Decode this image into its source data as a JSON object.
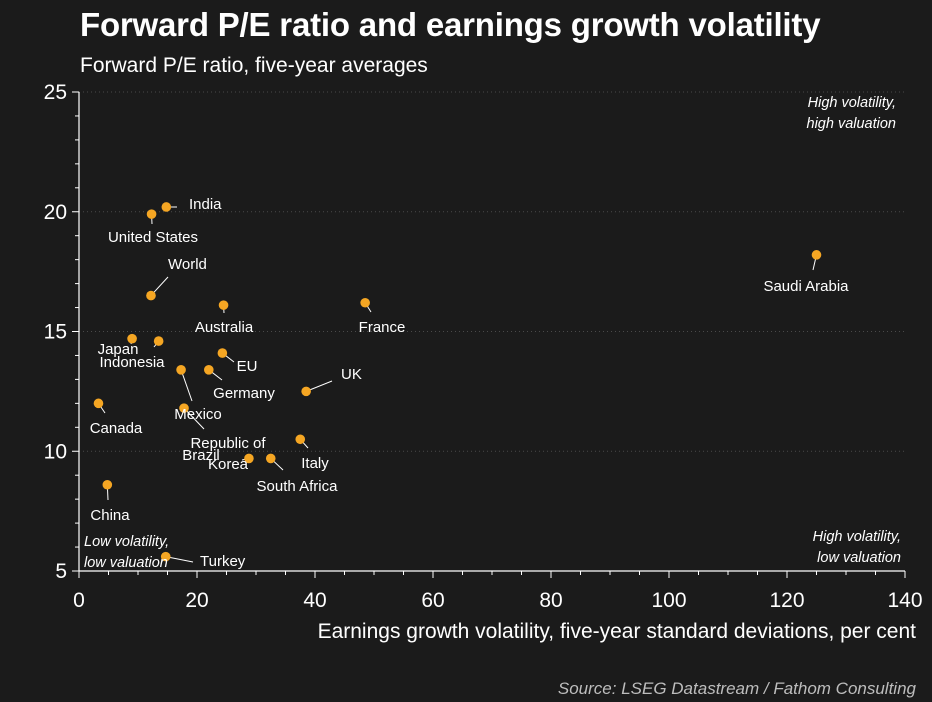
{
  "chart_data": {
    "type": "scatter",
    "title": "Forward P/E ratio and earnings growth volatility",
    "subtitle": "Forward P/E ratio, five-year averages",
    "xlabel": "Earnings growth volatility, five-year standard deviations, per cent",
    "ylabel": "",
    "source": "Source: LSEG Datastream / Fathom Consulting",
    "xlim": [
      0,
      140
    ],
    "ylim": [
      5,
      25
    ],
    "xticks": [
      0,
      20,
      40,
      60,
      80,
      100,
      120,
      140
    ],
    "yticks": [
      5,
      10,
      15,
      20,
      25
    ],
    "grid": "horizontal dotted",
    "marker_color": "#f5a623",
    "points": [
      {
        "label": "India",
        "x": 14.8,
        "y": 20.2
      },
      {
        "label": "United States",
        "x": 12.3,
        "y": 19.9
      },
      {
        "label": "World",
        "x": 12.2,
        "y": 16.5
      },
      {
        "label": "Australia",
        "x": 24.5,
        "y": 16.1
      },
      {
        "label": "France",
        "x": 48.5,
        "y": 16.2
      },
      {
        "label": "Saudi Arabia",
        "x": 125.0,
        "y": 18.2
      },
      {
        "label": "Japan",
        "x": 9.0,
        "y": 14.7
      },
      {
        "label": "Indonesia",
        "x": 13.5,
        "y": 14.6
      },
      {
        "label": "EU",
        "x": 24.3,
        "y": 14.1
      },
      {
        "label": "Mexico",
        "x": 17.3,
        "y": 13.4
      },
      {
        "label": "Germany",
        "x": 22.0,
        "y": 13.4
      },
      {
        "label": "UK",
        "x": 38.5,
        "y": 12.5
      },
      {
        "label": "Canada",
        "x": 3.3,
        "y": 12.0
      },
      {
        "label": "Republic of Korea",
        "x": 17.8,
        "y": 11.8
      },
      {
        "label": "Italy",
        "x": 37.5,
        "y": 10.5
      },
      {
        "label": "Brazil",
        "x": 28.8,
        "y": 9.7
      },
      {
        "label": "South Africa",
        "x": 32.5,
        "y": 9.7
      },
      {
        "label": "China",
        "x": 4.8,
        "y": 8.6
      },
      {
        "label": "Turkey",
        "x": 14.7,
        "y": 5.6
      }
    ],
    "annotations": [
      {
        "text": [
          "High volatility,",
          "high valuation"
        ],
        "position": "top-right"
      },
      {
        "text": [
          "High volatility,",
          "low valuation"
        ],
        "position": "bottom-right"
      },
      {
        "text": [
          "Low volatility,",
          "low valuation"
        ],
        "position": "bottom-left"
      }
    ]
  }
}
